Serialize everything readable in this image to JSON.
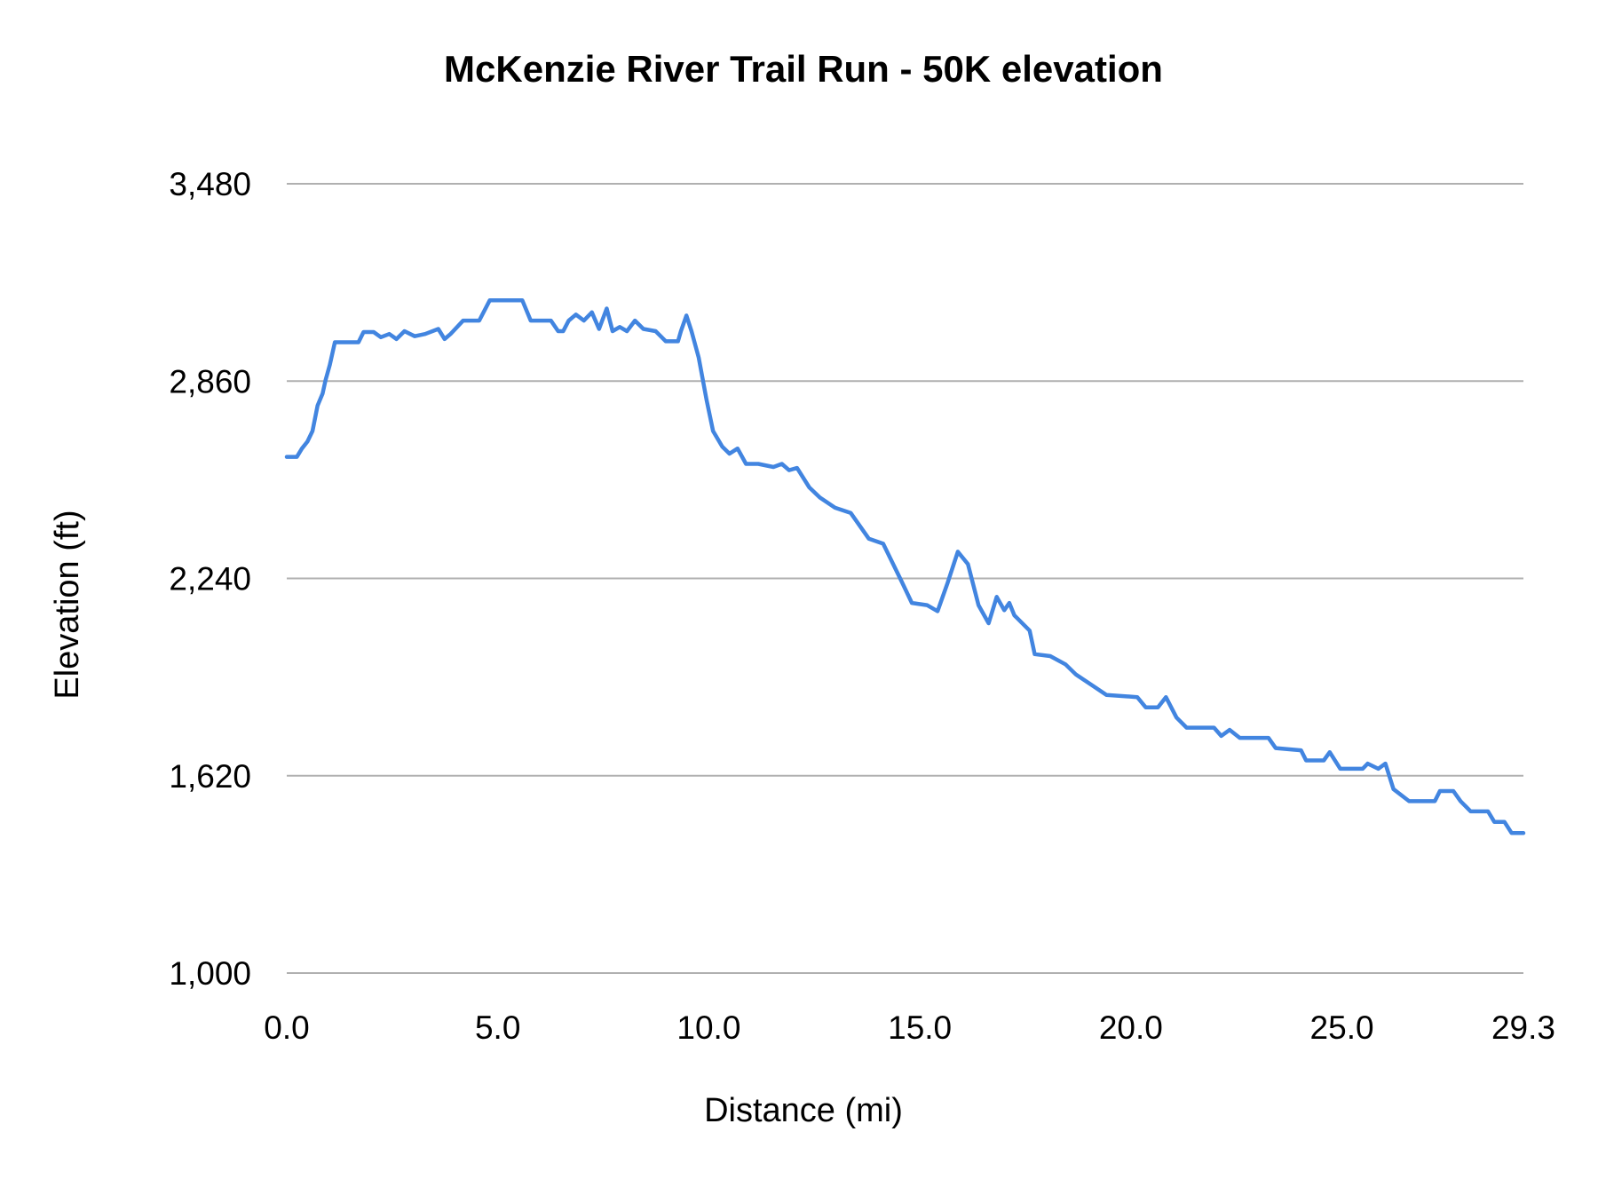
{
  "chart_data": {
    "type": "line",
    "title": "McKenzie River Trail Run - 50K elevation",
    "xlabel": "Distance (mi)",
    "ylabel": "Elevation (ft)",
    "xlim": [
      0,
      29.3
    ],
    "ylim": [
      1000,
      3480
    ],
    "x_ticks": [
      "0.0",
      "5.0",
      "10.0",
      "15.0",
      "20.0",
      "25.0",
      "29.3"
    ],
    "x_tick_values": [
      0,
      5,
      10,
      15,
      20,
      25,
      29.3
    ],
    "y_ticks": [
      "1,000",
      "1,620",
      "2,240",
      "2,860",
      "3,480"
    ],
    "y_tick_values": [
      1000,
      1620,
      2240,
      2860,
      3480
    ],
    "grid": "horizontal",
    "legend": "none",
    "line_color": "#4285e0",
    "grid_color": "#b0b0b0",
    "series": [
      {
        "x": [
          0,
          0.24,
          0.36,
          0.49,
          0.61,
          0.73,
          0.85,
          0.92,
          1.02,
          1.14,
          1.7,
          1.82,
          2.06,
          2.23,
          2.43,
          2.6,
          2.79,
          3.03,
          3.28,
          3.59,
          3.74,
          3.88,
          4.18,
          4.56,
          4.81,
          5.58,
          5.78,
          6.26,
          6.43,
          6.55,
          6.68,
          6.85,
          7.04,
          7.23,
          7.4,
          7.58,
          7.72,
          7.89,
          8.06,
          8.25,
          8.45,
          8.74,
          8.98,
          9.27,
          9.34,
          9.47,
          9.59,
          9.76,
          9.95,
          10.1,
          10.32,
          10.49,
          10.68,
          10.88,
          11.17,
          11.53,
          11.73,
          11.9,
          12.09,
          12.38,
          12.63,
          12.99,
          13.36,
          13.79,
          14.13,
          14.57,
          14.81,
          15.17,
          15.42,
          15.66,
          15.9,
          16.14,
          16.39,
          16.63,
          16.82,
          17.0,
          17.12,
          17.24,
          17.6,
          17.72,
          18.09,
          18.45,
          18.7,
          19.06,
          19.42,
          20.15,
          20.35,
          20.64,
          20.83,
          21.08,
          21.32,
          21.97,
          22.14,
          22.34,
          22.58,
          23.26,
          23.43,
          24.03,
          24.15,
          24.57,
          24.71,
          24.96,
          25.49,
          25.61,
          25.86,
          26.03,
          26.22,
          26.59,
          27.2,
          27.32,
          27.64,
          27.81,
          28.05,
          28.46,
          28.61,
          28.85,
          29.02,
          29.3
        ],
        "y": [
          2622,
          2622,
          2648,
          2670,
          2703,
          2783,
          2821,
          2863,
          2911,
          2982,
          2982,
          3014,
          3014,
          2998,
          3008,
          2992,
          3017,
          3001,
          3008,
          3024,
          2992,
          3008,
          3050,
          3050,
          3114,
          3114,
          3050,
          3050,
          3017,
          3017,
          3050,
          3069,
          3050,
          3076,
          3024,
          3088,
          3017,
          3030,
          3017,
          3050,
          3024,
          3017,
          2985,
          2985,
          3017,
          3066,
          3017,
          2934,
          2799,
          2703,
          2654,
          2632,
          2648,
          2600,
          2600,
          2590,
          2600,
          2580,
          2587,
          2526,
          2494,
          2462,
          2446,
          2365,
          2349,
          2230,
          2163,
          2156,
          2137,
          2227,
          2324,
          2285,
          2156,
          2099,
          2182,
          2140,
          2163,
          2124,
          2076,
          2002,
          1996,
          1970,
          1938,
          1906,
          1874,
          1867,
          1835,
          1835,
          1867,
          1803,
          1771,
          1771,
          1745,
          1764,
          1739,
          1739,
          1707,
          1700,
          1668,
          1668,
          1694,
          1642,
          1642,
          1658,
          1642,
          1658,
          1578,
          1540,
          1540,
          1572,
          1572,
          1540,
          1508,
          1508,
          1475,
          1475,
          1440,
          1440
        ]
      }
    ]
  }
}
